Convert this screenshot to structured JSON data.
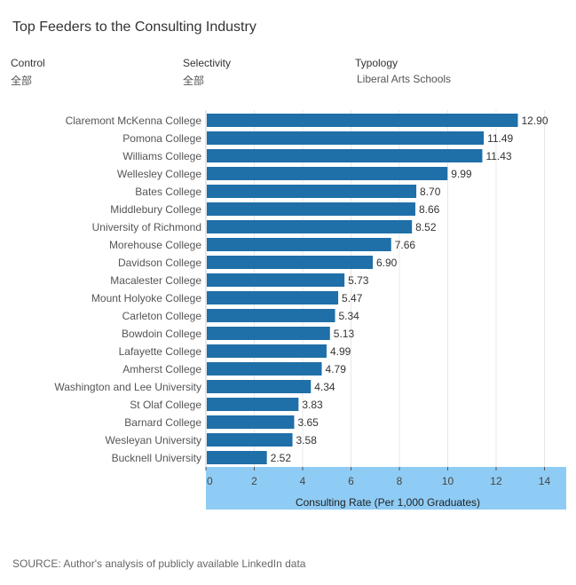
{
  "title": "Top Feeders to the Consulting Industry",
  "filters": [
    {
      "label": "Control",
      "value": "全部"
    },
    {
      "label": "Selectivity",
      "value": "全部"
    },
    {
      "label": "Typology",
      "value": "Liberal Arts Schools"
    }
  ],
  "source": "SOURCE: Author's analysis of publicly available LinkedIn data",
  "colors": {
    "bar": "#1f6fa8",
    "axis_band": "#8fccf5",
    "grid": "#e8e8e8"
  },
  "chart_data": {
    "type": "bar",
    "orientation": "horizontal",
    "categories": [
      "Claremont McKenna College",
      "Pomona College",
      "Williams College",
      "Wellesley College",
      "Bates College",
      "Middlebury College",
      "University of Richmond",
      "Morehouse College",
      "Davidson College",
      "Macalester College",
      "Mount Holyoke College",
      "Carleton College",
      "Bowdoin College",
      "Lafayette College",
      "Amherst College",
      "Washington and Lee University",
      "St Olaf College",
      "Barnard College",
      "Wesleyan University",
      "Bucknell University"
    ],
    "values": [
      12.9,
      11.49,
      11.43,
      9.99,
      8.7,
      8.66,
      8.52,
      7.66,
      6.9,
      5.73,
      5.47,
      5.34,
      5.13,
      4.99,
      4.79,
      4.34,
      3.83,
      3.65,
      3.58,
      2.52
    ],
    "value_labels": [
      "12.90",
      "11.49",
      "11.43",
      "9.99",
      "8.70",
      "8.66",
      "8.52",
      "7.66",
      "6.90",
      "5.73",
      "5.47",
      "5.34",
      "5.13",
      "4.99",
      "4.79",
      "4.34",
      "3.83",
      "3.65",
      "3.58",
      "2.52"
    ],
    "xlabel": "Consulting Rate (Per 1,000 Graduates)",
    "xticks": [
      0,
      2,
      4,
      6,
      8,
      10,
      12,
      14
    ],
    "xtick_labels": [
      "0",
      "2",
      "4",
      "6",
      "8",
      "10",
      "12",
      "14"
    ],
    "xlim": [
      0,
      14.9
    ],
    "grid": true
  }
}
